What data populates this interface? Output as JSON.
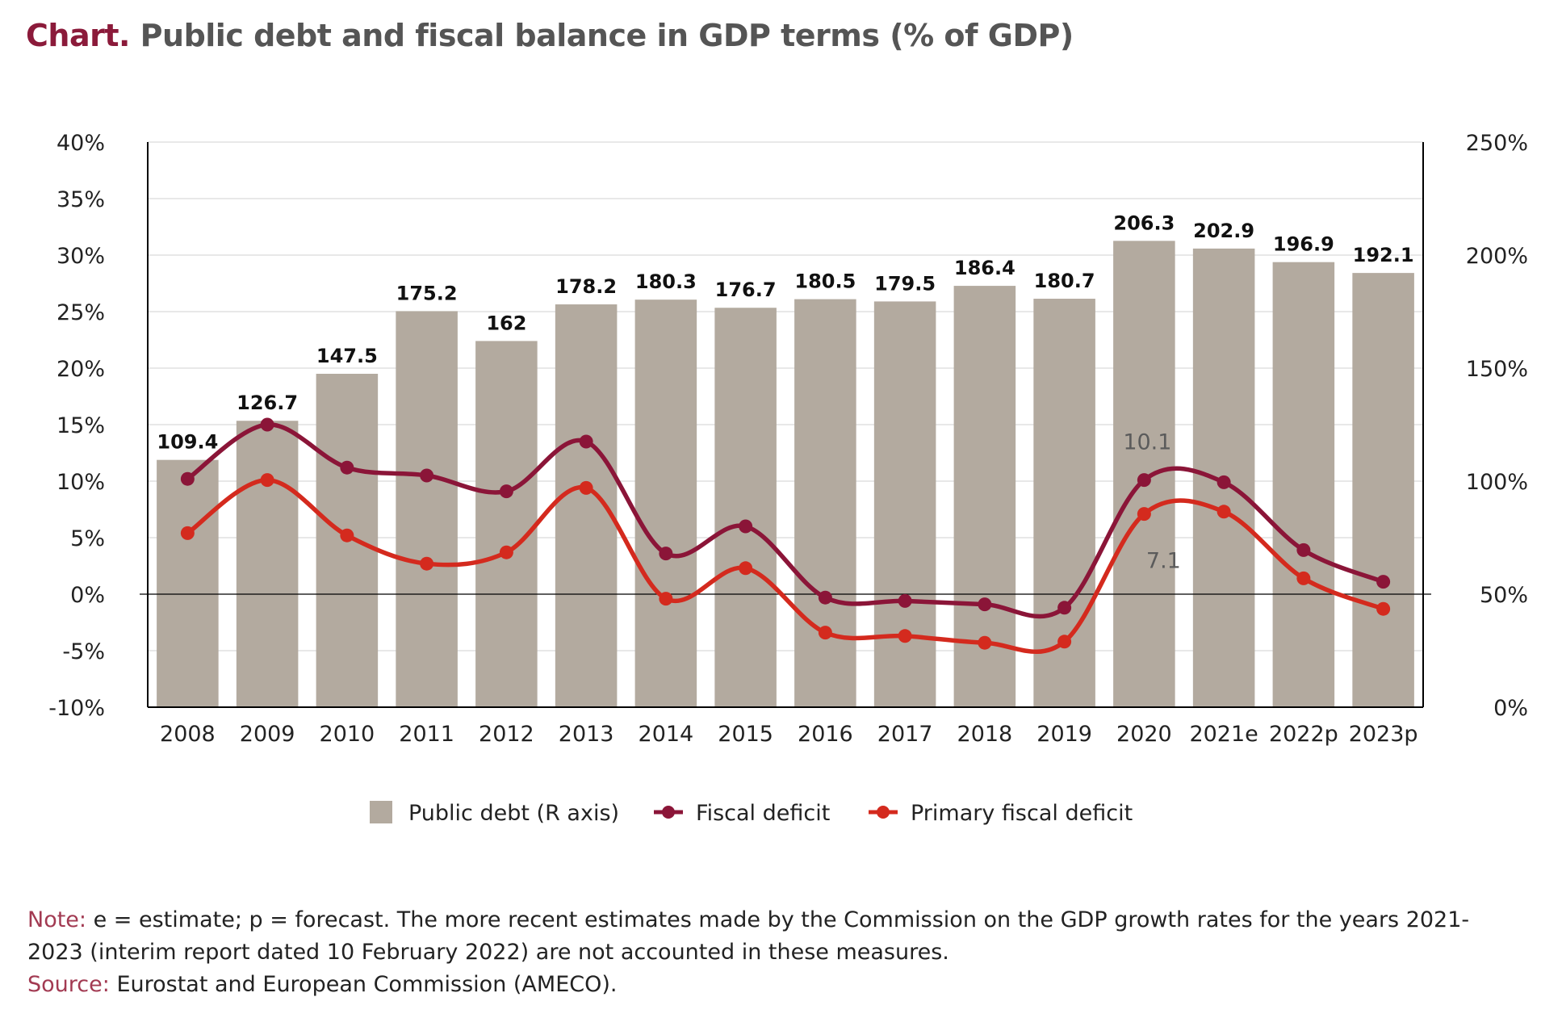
{
  "title": {
    "lead": "Chart.",
    "text": "Public debt and fiscal balance in GDP terms (% of GDP)"
  },
  "chart_data": {
    "type": "bar",
    "categories": [
      "2008",
      "2009",
      "2010",
      "2011",
      "2012",
      "2013",
      "2014",
      "2015",
      "2016",
      "2017",
      "2018",
      "2019",
      "2020",
      "2021e",
      "2022p",
      "2023p"
    ],
    "left_axis": {
      "ticks": [
        -10,
        -5,
        0,
        5,
        10,
        15,
        20,
        25,
        30,
        35,
        40
      ],
      "tick_labels": [
        "-10%",
        "-5%",
        "0%",
        "5%",
        "10%",
        "15%",
        "20%",
        "25%",
        "30%",
        "35%",
        "40%"
      ],
      "ylim": [
        -10,
        40
      ]
    },
    "right_axis": {
      "ticks": [
        0,
        50,
        100,
        150,
        200,
        250
      ],
      "tick_labels": [
        "0%",
        "50%",
        "100%",
        "150%",
        "200%",
        "250%"
      ],
      "ylim": [
        0,
        250
      ]
    },
    "series": [
      {
        "name": "Public debt (R axis)",
        "type": "bar",
        "axis": "right",
        "color": "#b3aa9f",
        "values": [
          109.4,
          126.7,
          147.5,
          175.2,
          162,
          178.2,
          180.3,
          176.7,
          180.5,
          179.5,
          186.4,
          180.7,
          206.3,
          202.9,
          196.9,
          192.1
        ],
        "labels": [
          "109.4",
          "126.7",
          "147.5",
          "175.2",
          "162",
          "178.2",
          "180.3",
          "176.7",
          "180.5",
          "179.5",
          "186.4",
          "180.7",
          "206.3",
          "202.9",
          "196.9",
          "192.1"
        ]
      },
      {
        "name": "Fiscal deficit",
        "type": "line",
        "axis": "left",
        "color": "#8b1538",
        "values": [
          10.2,
          15.0,
          11.2,
          10.5,
          9.1,
          13.5,
          3.6,
          6.0,
          -0.3,
          -0.6,
          -0.9,
          -1.2,
          10.1,
          9.9,
          3.9,
          1.1
        ],
        "annotation": {
          "index": 12,
          "text": "10.1"
        }
      },
      {
        "name": "Primary fiscal deficit",
        "type": "line",
        "axis": "left",
        "color": "#d42a1e",
        "values": [
          5.4,
          10.1,
          5.2,
          2.7,
          3.7,
          9.4,
          -0.4,
          2.3,
          -3.4,
          -3.7,
          -4.3,
          -4.2,
          7.1,
          7.3,
          1.4,
          -1.3
        ],
        "annotation": {
          "index": 12,
          "text": "7.1"
        }
      }
    ],
    "legend_position": "bottom-center",
    "grid": true
  },
  "notes": {
    "note_label": "Note:",
    "note_text": "e = estimate; p = forecast. The more recent estimates made by the Commission on the GDP growth rates for the years 2021-2023 (interim report dated 10 February 2022) are not accounted in these measures.",
    "source_label": "Source:",
    "source_text": "Eurostat and European Commission (AMECO)."
  }
}
